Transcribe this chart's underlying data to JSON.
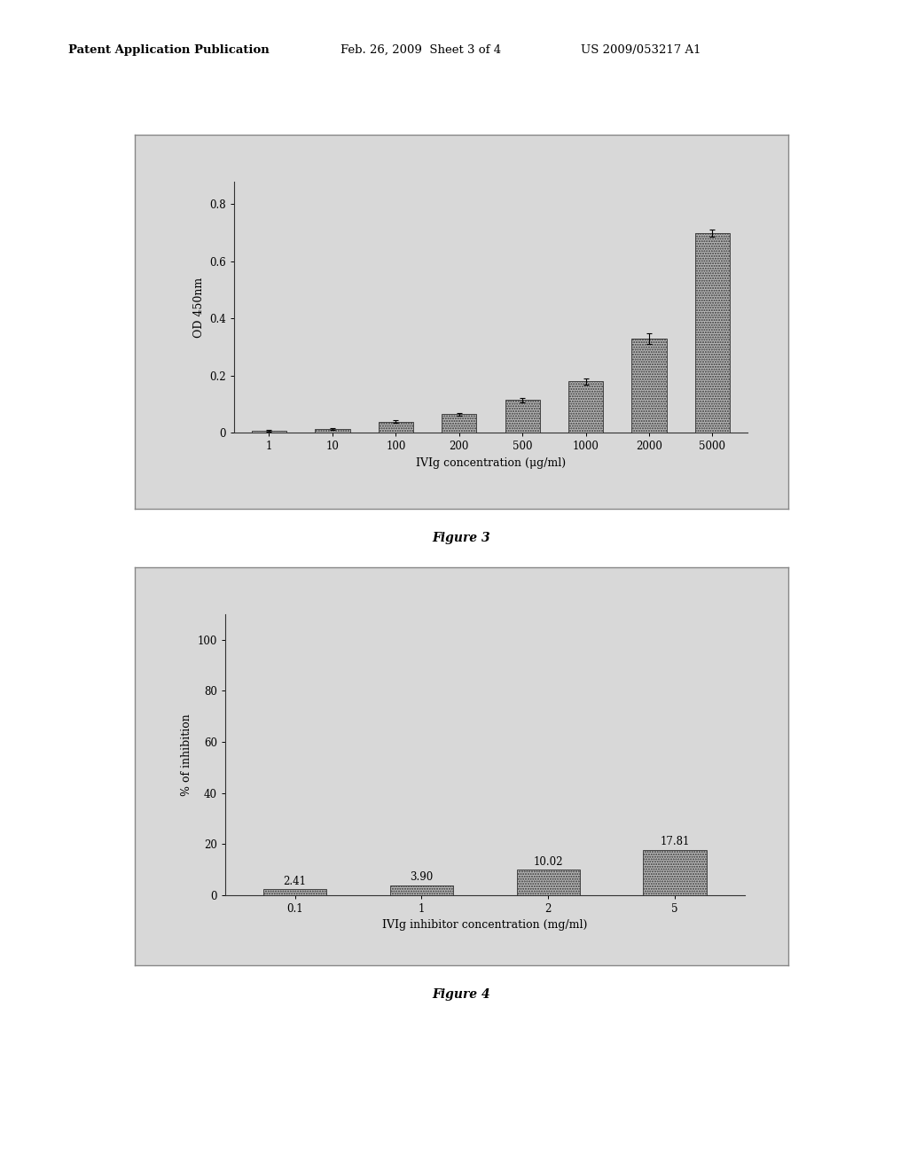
{
  "fig3": {
    "categories": [
      "1",
      "10",
      "100",
      "200",
      "500",
      "1000",
      "2000",
      "5000"
    ],
    "values": [
      0.008,
      0.015,
      0.04,
      0.065,
      0.115,
      0.18,
      0.33,
      0.7
    ],
    "errors": [
      0.003,
      0.003,
      0.005,
      0.005,
      0.007,
      0.01,
      0.02,
      0.012
    ],
    "ylabel": "OD 450nm",
    "xlabel": "IVIg concentration (μg/ml)",
    "ylim": [
      0,
      0.88
    ],
    "yticks": [
      0,
      0.2,
      0.4,
      0.6,
      0.8
    ],
    "ytick_labels": [
      "0",
      "0.2",
      "0.4",
      "0.6",
      "0.8"
    ],
    "caption": "Figure 3"
  },
  "fig4": {
    "categories": [
      "0.1",
      "1",
      "2",
      "5"
    ],
    "values": [
      2.41,
      3.9,
      10.02,
      17.81
    ],
    "labels": [
      "2.41",
      "3.90",
      "10.02",
      "17.81"
    ],
    "ylabel": "% of inhibition",
    "xlabel": "IVIg inhibitor concentration (mg/ml)",
    "ylim": [
      0,
      110
    ],
    "yticks": [
      0,
      20,
      40,
      60,
      80,
      100
    ],
    "ytick_labels": [
      "0",
      "20",
      "40",
      "60",
      "80",
      "100"
    ],
    "caption": "Figure 4"
  },
  "header_left": "Patent Application Publication",
  "header_mid": "Feb. 26, 2009  Sheet 3 of 4",
  "header_right": "US 2009/053217 A1",
  "page_bg": "#ffffff",
  "panel_bg": "#d8d8d8",
  "plot_bg": "#d8d8d8",
  "bar_color": "#b8b8b8",
  "border_color": "#888888"
}
